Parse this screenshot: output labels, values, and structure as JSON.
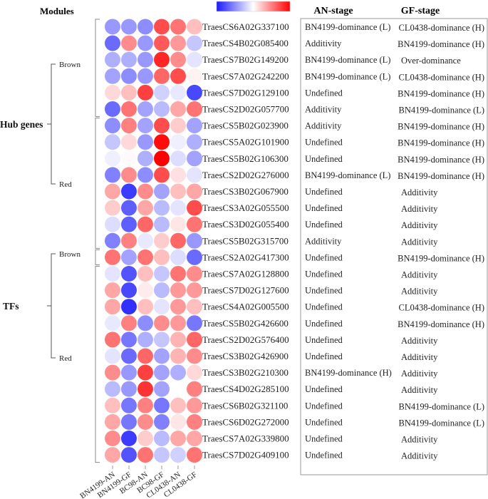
{
  "chart_data": {
    "type": "heatmap",
    "title": "",
    "colorscale": {
      "low": "#1a1aff",
      "mid": "#ffffff",
      "high": "#ff0000",
      "range": [
        -1,
        1
      ]
    },
    "header": {
      "modules": "Modules",
      "an_stage": "AN-stage",
      "gf_stage": "GF-stage"
    },
    "columns": [
      "BN4199-AN",
      "BN4199-GF",
      "BC98-AN",
      "BC98-GF",
      "CL0438-AN",
      "CL0438-GF"
    ],
    "groups": [
      {
        "label": "Hub genes",
        "modules": [
          {
            "label": "Brown",
            "rows": 6
          },
          {
            "label": "Red",
            "rows": 8
          }
        ]
      },
      {
        "label": "TFs",
        "modules": [
          {
            "label": "Brown",
            "rows": 1
          },
          {
            "label": "Red",
            "rows": 12
          }
        ]
      }
    ],
    "rows": [
      {
        "gene": "TraesCS6A02G337100",
        "an": "BN4199-dominance (L)",
        "gf": "CL0438-dominance (H)",
        "values": [
          -0.45,
          -0.45,
          -0.5,
          0.7,
          0.55,
          0.25
        ]
      },
      {
        "gene": "TraesCS4B02G085400",
        "an": "Additivity",
        "gf": "BN4199-dominance (H)",
        "values": [
          -0.65,
          0.45,
          -0.45,
          0.65,
          0.4,
          -0.25
        ]
      },
      {
        "gene": "TraesCS7B02G149200",
        "an": "BN4199-dominance (L)",
        "gf": "Over-dominance",
        "values": [
          -0.35,
          -0.35,
          -0.45,
          0.85,
          0.45,
          -0.12
        ]
      },
      {
        "gene": "TraesCS7A02G242200",
        "an": "BN4199-dominance (L)",
        "gf": "CL0438-dominance (H)",
        "values": [
          -0.4,
          -0.5,
          -0.45,
          0.6,
          0.7,
          0.05
        ]
      },
      {
        "gene": "TraesCS7D02G129100",
        "an": "Undefined",
        "gf": "BN4199-dominance (H)",
        "values": [
          0.15,
          0.25,
          0.75,
          -0.2,
          -0.1,
          -0.8
        ]
      },
      {
        "gene": "TraesCS2D02G057700",
        "an": "Additivity",
        "gf": "BN4199-dominance (L)",
        "values": [
          -0.65,
          0.55,
          -0.4,
          -0.3,
          0.35,
          0.55
        ]
      },
      {
        "gene": "TraesCS5B02G023900",
        "an": "Additivity",
        "gf": "BN4199-dominance (H)",
        "values": [
          -0.5,
          0.5,
          -0.4,
          0.7,
          0.2,
          -0.4
        ]
      },
      {
        "gene": "TraesCS5A02G101900",
        "an": "Undefined",
        "gf": "BN4199-dominance (H)",
        "values": [
          -0.25,
          0.15,
          -0.45,
          0.95,
          -0.07,
          -0.35
        ]
      },
      {
        "gene": "TraesCS5B02G106300",
        "an": "Undefined",
        "gf": "BN4199-dominance (H)",
        "values": [
          -0.07,
          0.02,
          -0.35,
          1.0,
          -0.15,
          -0.4
        ]
      },
      {
        "gene": "TraesCS2D02G276000",
        "an": "BN4199-dominance (L)",
        "gf": "BN4199-dominance (H)",
        "values": [
          -0.55,
          0.45,
          -0.5,
          0.7,
          0.12,
          -0.12
        ]
      },
      {
        "gene": "TraesCS3B02G067900",
        "an": "Undefined",
        "gf": "Additivity",
        "values": [
          0.35,
          -0.85,
          0.45,
          -0.4,
          0.25,
          0.35
        ]
      },
      {
        "gene": "TraesCS3A02G055500",
        "an": "Undefined",
        "gf": "Additivity",
        "values": [
          0.2,
          -0.7,
          0.35,
          -0.3,
          -0.12,
          0.7
        ]
      },
      {
        "gene": "TraesCS3D02G055400",
        "an": "Undefined",
        "gf": "Additivity",
        "values": [
          -0.15,
          -0.7,
          0.6,
          -0.3,
          0.1,
          0.55
        ]
      },
      {
        "gene": "TraesCS5B02G315700",
        "an": "Additivity",
        "gf": "Additivity",
        "values": [
          -0.55,
          0.5,
          -0.1,
          0.2,
          0.6,
          -0.45
        ]
      },
      {
        "gene": "TraesCS2A02G417300",
        "an": "Undefined",
        "gf": "BN4199-dominance (H)",
        "values": [
          0.55,
          -0.4,
          0.55,
          0.25,
          -0.15,
          -0.65
        ]
      },
      {
        "gene": "TraesCS7A02G128800",
        "an": "Undefined",
        "gf": "Additivity",
        "values": [
          -0.12,
          -0.75,
          0.25,
          -0.25,
          0.55,
          0.45
        ]
      },
      {
        "gene": "TraesCS7D02G127600",
        "an": "Undefined",
        "gf": "Additivity",
        "values": [
          0.35,
          -0.8,
          0.08,
          -0.3,
          0.4,
          0.4
        ]
      },
      {
        "gene": "TraesCS4A02G005500",
        "an": "Undefined",
        "gf": "CL0438-dominance (H)",
        "values": [
          0.35,
          -0.9,
          0.25,
          -0.12,
          0.4,
          0.25
        ]
      },
      {
        "gene": "TraesCS5B02G426600",
        "an": "Undefined",
        "gf": "BN4199-dominance (H)",
        "values": [
          -0.1,
          0.5,
          -0.5,
          0.45,
          0.4,
          -0.6
        ]
      },
      {
        "gene": "TraesCS2D02G576400",
        "an": "Undefined",
        "gf": "Additivity",
        "values": [
          0.55,
          -0.6,
          -0.35,
          -0.25,
          0.3,
          0.6
        ]
      },
      {
        "gene": "TraesCS3B02G426900",
        "an": "Undefined",
        "gf": "Additivity",
        "values": [
          -0.12,
          -0.65,
          0.6,
          -0.4,
          0.3,
          0.45
        ]
      },
      {
        "gene": "TraesCS3B02G210300",
        "an": "BN4199-dominance (H)",
        "gf": "Additivity",
        "values": [
          0.45,
          -0.45,
          0.75,
          -0.4,
          -0.35,
          0.15
        ]
      },
      {
        "gene": "TraesCS4D02G285100",
        "an": "Undefined",
        "gf": "Additivity",
        "values": [
          -0.3,
          -0.45,
          0.8,
          -0.4,
          0.0,
          0.5
        ]
      },
      {
        "gene": "TraesCS6B02G321100",
        "an": "Undefined",
        "gf": "BN4199-dominance (L)",
        "values": [
          0.25,
          -0.6,
          0.5,
          -0.6,
          0.25,
          0.4
        ]
      },
      {
        "gene": "TraesCS6D02G272000",
        "an": "Undefined",
        "gf": "BN4199-dominance (L)",
        "values": [
          0.35,
          -0.6,
          0.45,
          -0.55,
          0.1,
          0.5
        ]
      },
      {
        "gene": "TraesCS7A02G339800",
        "an": "Undefined",
        "gf": "Additivity",
        "values": [
          0.45,
          -0.85,
          0.2,
          -0.3,
          0.35,
          0.35
        ]
      },
      {
        "gene": "TraesCS7D02G409100",
        "an": "Undefined",
        "gf": "Additivity",
        "values": [
          0.35,
          -0.75,
          0.55,
          -0.25,
          -0.2,
          0.55
        ]
      }
    ]
  }
}
